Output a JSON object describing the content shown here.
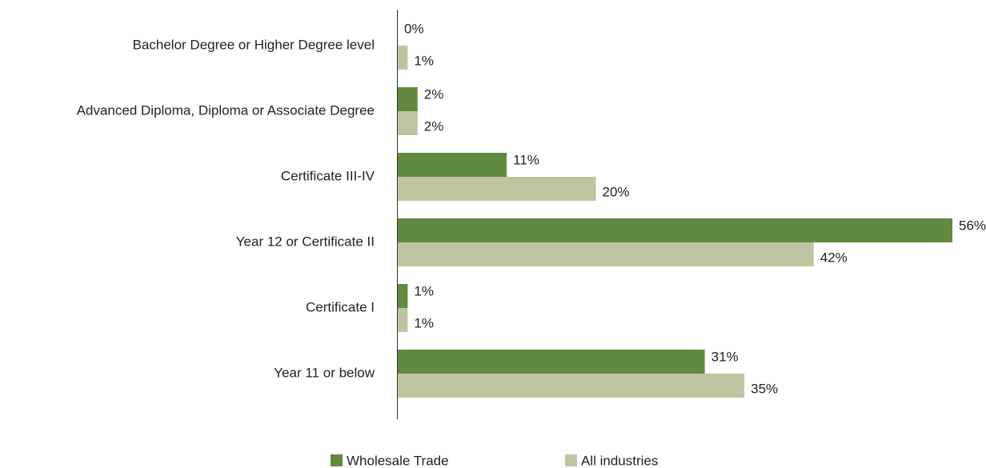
{
  "chart_data": {
    "type": "hbar",
    "categories": [
      "Bachelor Degree or Higher Degree level",
      "Advanced Diploma, Diploma or Associate Degree",
      "Certificate III-IV",
      "Year 12 or Certificate II",
      "Certificate I",
      "Year 11 or below"
    ],
    "series": [
      {
        "name": "Wholesale Trade",
        "color": "#5f8a3f",
        "values": [
          0,
          2,
          11,
          56,
          1,
          31
        ],
        "value_labels": [
          "0%",
          "2%",
          "11%",
          "56%",
          "1%",
          "31%"
        ]
      },
      {
        "name": "All industries",
        "color": "#bfc4a0",
        "values": [
          1,
          2,
          20,
          42,
          1,
          35
        ],
        "value_labels": [
          "1%",
          "2%",
          "20%",
          "42%",
          "1%",
          "35%"
        ]
      }
    ]
  }
}
